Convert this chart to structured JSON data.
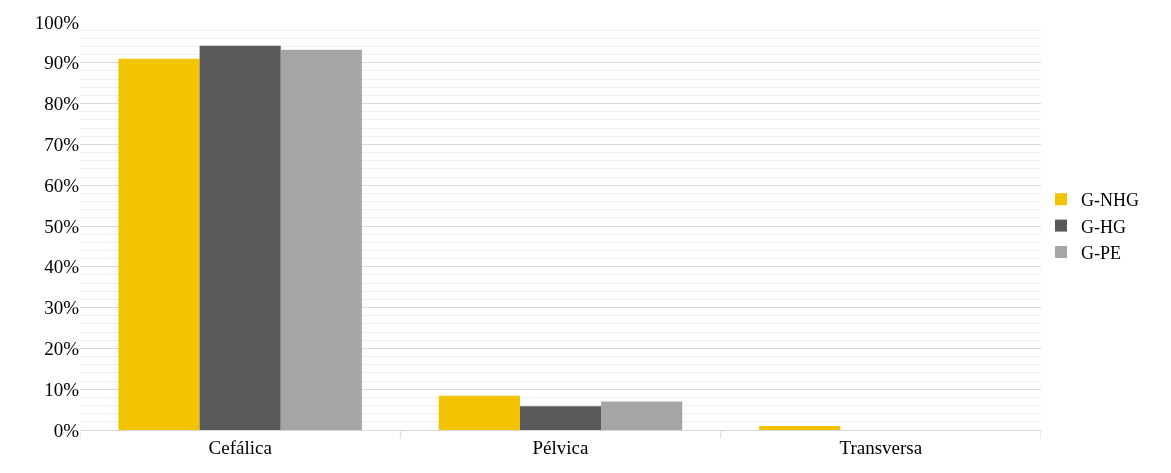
{
  "chart_data": {
    "type": "bar",
    "categories": [
      "Cefálica",
      "Pélvica",
      "Transversa"
    ],
    "series": [
      {
        "name": "G-NHG",
        "color": "#f2c300",
        "values": [
          91,
          8.4,
          1
        ]
      },
      {
        "name": "G-HG",
        "color": "#595959",
        "values": [
          94.2,
          5.8,
          0
        ]
      },
      {
        "name": "G-PE",
        "color": "#a5a5a5",
        "values": [
          93.2,
          7,
          0
        ]
      }
    ],
    "ylim": [
      0,
      100
    ],
    "yticks": [
      {
        "value": 0,
        "label": "0%"
      },
      {
        "value": 10,
        "label": "10%"
      },
      {
        "value": 20,
        "label": "20%"
      },
      {
        "value": 30,
        "label": "30%"
      },
      {
        "value": 40,
        "label": "40%"
      },
      {
        "value": 50,
        "label": "50%"
      },
      {
        "value": 60,
        "label": "60%"
      },
      {
        "value": 70,
        "label": "70%"
      },
      {
        "value": 80,
        "label": "80%"
      },
      {
        "value": 90,
        "label": "90%"
      },
      {
        "value": 100,
        "label": "100%"
      }
    ],
    "grid": "y",
    "legend": "right"
  }
}
